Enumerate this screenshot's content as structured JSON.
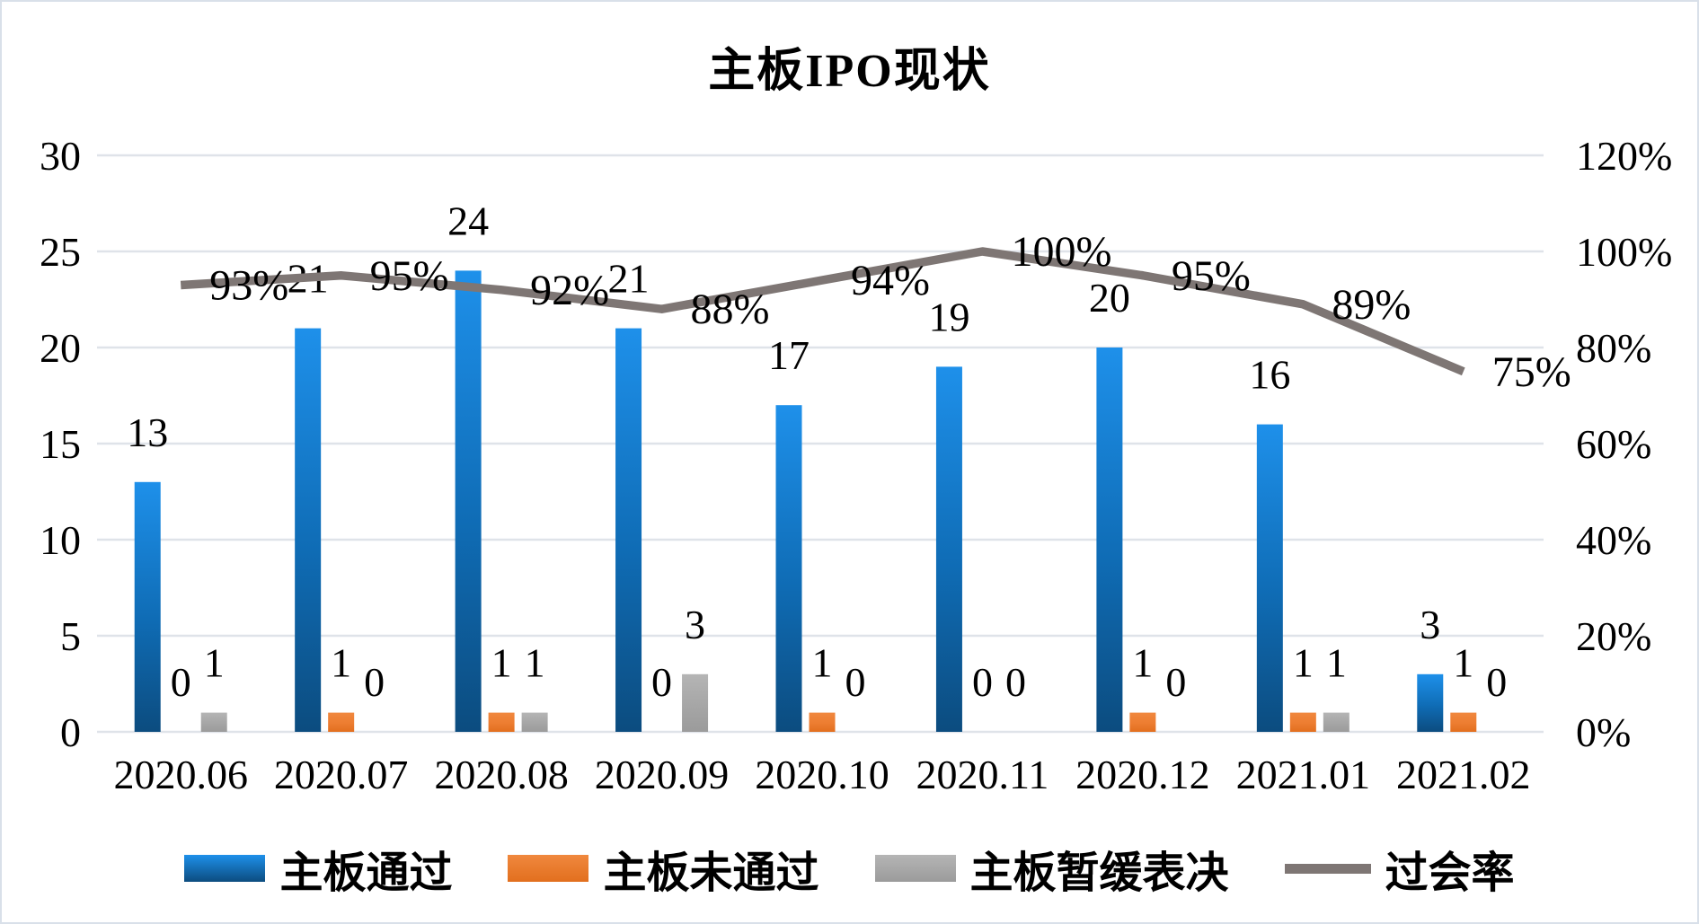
{
  "title": "主板IPO现状",
  "chart_data": {
    "type": "combo-bar-line",
    "categories": [
      "2020.06",
      "2020.07",
      "2020.08",
      "2020.09",
      "2020.10",
      "2020.11",
      "2020.12",
      "2021.01",
      "2021.02"
    ],
    "series": [
      {
        "key": "pass",
        "name": "主板通过",
        "type": "bar",
        "axis": "left",
        "colors": {
          "top": "#1E90EA",
          "mid": "#0F6CB5",
          "bottom": "#0C4C7F"
        },
        "values": [
          13,
          21,
          24,
          21,
          17,
          19,
          20,
          16,
          3
        ]
      },
      {
        "key": "fail",
        "name": "主板未通过",
        "type": "bar",
        "axis": "left",
        "colors": {
          "top": "#F0883E",
          "mid": "#ED7D31",
          "bottom": "#E26F1E"
        },
        "values": [
          0,
          1,
          1,
          0,
          1,
          0,
          1,
          1,
          1
        ]
      },
      {
        "key": "postponed",
        "name": "主板暂缓表决",
        "type": "bar",
        "axis": "left",
        "colors": {
          "top": "#B5B5B5",
          "mid": "#A6A6A6",
          "bottom": "#9B9B9B"
        },
        "values": [
          1,
          0,
          1,
          3,
          0,
          0,
          0,
          1,
          0
        ]
      },
      {
        "key": "pass-rate",
        "name": "过会率",
        "type": "line",
        "axis": "right",
        "color": "#7E7674",
        "values_percent": [
          93,
          95,
          92,
          88,
          94,
          100,
          95,
          89,
          75
        ],
        "labels": [
          "93%",
          "95%",
          "92%",
          "88%",
          "94%",
          "100%",
          "95%",
          "89%",
          "75%"
        ]
      }
    ],
    "axes": {
      "left": {
        "min": 0,
        "max": 30,
        "ticks": [
          0,
          5,
          10,
          15,
          20,
          25,
          30
        ],
        "tick_labels": [
          "0",
          "5",
          "10",
          "15",
          "20",
          "25",
          "30"
        ]
      },
      "right": {
        "min_label": "0%",
        "max_label": "120%",
        "ticks": [
          0,
          20,
          40,
          60,
          80,
          100,
          120
        ],
        "tick_labels": [
          "0%",
          "20%",
          "40%",
          "60%",
          "80%",
          "100%",
          "120%"
        ]
      }
    },
    "grid": true,
    "legend_position": "bottom"
  },
  "colors": {
    "gridline": "#DFE3E9",
    "text": "#000000",
    "background": "#FFFFFF",
    "frame_border": "#D9E0E9"
  }
}
